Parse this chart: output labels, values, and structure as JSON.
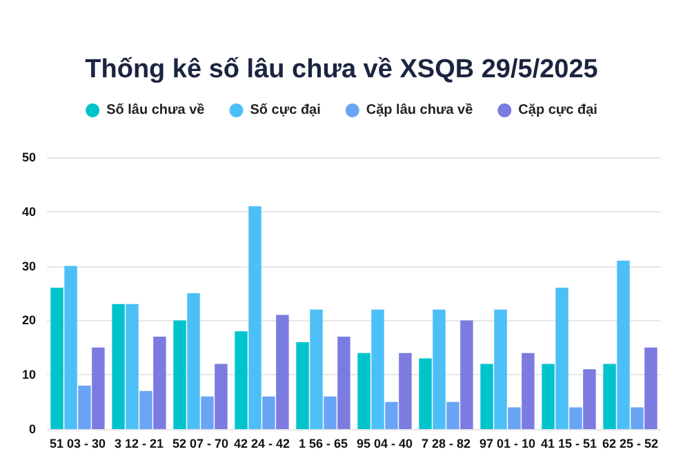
{
  "chart_data": {
    "type": "bar",
    "title": "Thống kê số lâu chưa về XSQB 29/5/2025",
    "categories": [
      "51 03 - 30",
      "3 12 - 21",
      "52 07 - 70",
      "42 24 - 42",
      "1 56 - 65",
      "95 04 - 40",
      "7 28 - 82",
      "97 01 - 10",
      "41 15 - 51",
      "62 25 - 52"
    ],
    "series": [
      {
        "name": "Số lâu chưa về",
        "color": "#00c4cc",
        "values": [
          26,
          23,
          20,
          18,
          16,
          14,
          13,
          12,
          12,
          12
        ]
      },
      {
        "name": "Số cực đại",
        "color": "#4dbff7",
        "values": [
          30,
          23,
          25,
          41,
          22,
          22,
          22,
          22,
          26,
          31
        ]
      },
      {
        "name": "Cặp lâu chưa về",
        "color": "#6aa5f5",
        "values": [
          8,
          7,
          6,
          6,
          6,
          5,
          5,
          4,
          4,
          4
        ]
      },
      {
        "name": "Cặp cực đại",
        "color": "#7b7be0",
        "values": [
          15,
          17,
          12,
          21,
          17,
          14,
          20,
          14,
          11,
          15
        ]
      }
    ],
    "ylim": [
      0,
      50
    ],
    "yticks": [
      0,
      10,
      20,
      30,
      40,
      50
    ],
    "grid": "y",
    "legend": "top"
  }
}
